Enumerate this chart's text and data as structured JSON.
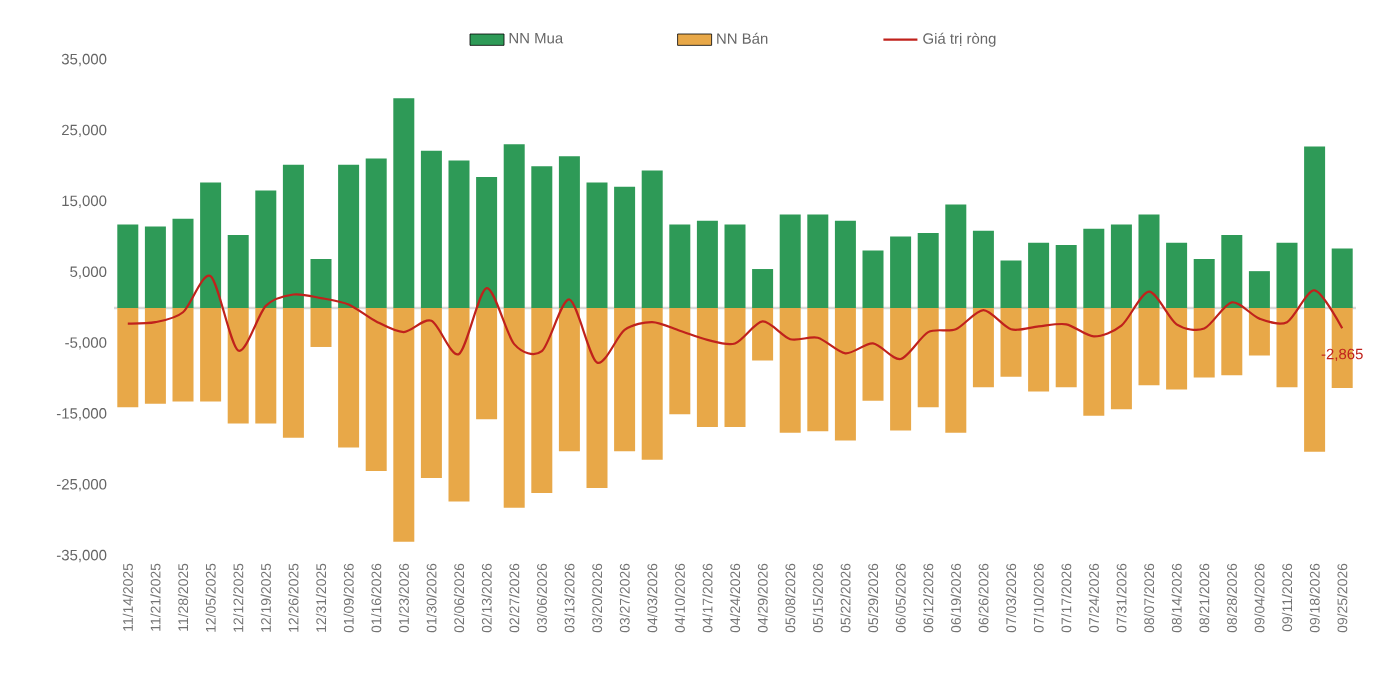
{
  "chart_data": {
    "type": "bar",
    "categories": [
      "11/14/2025",
      "11/21/2025",
      "11/28/2025",
      "12/05/2025",
      "12/12/2025",
      "12/19/2025",
      "12/26/2025",
      "12/31/2025",
      "01/09/2026",
      "01/16/2026",
      "01/23/2026",
      "01/30/2026",
      "02/06/2026",
      "02/13/2026",
      "02/27/2026",
      "03/06/2026",
      "03/13/2026",
      "03/20/2026",
      "03/27/2026",
      "04/03/2026",
      "04/10/2026",
      "04/17/2026",
      "04/24/2026",
      "04/29/2026",
      "05/08/2026",
      "05/15/2026",
      "05/22/2026",
      "05/29/2026",
      "06/05/2026",
      "06/12/2026",
      "06/19/2026",
      "06/26/2026",
      "07/03/2026",
      "07/10/2026",
      "07/17/2026",
      "07/24/2026",
      "07/31/2026",
      "08/07/2026",
      "08/14/2026",
      "08/21/2026",
      "08/28/2026",
      "09/04/2026",
      "09/11/2026",
      "09/18/2026",
      "09/25/2026"
    ],
    "series": [
      {
        "name": "NN Mua",
        "color": "#2e9a57",
        "values": [
          11800,
          11500,
          12600,
          17700,
          10300,
          16600,
          20200,
          6900,
          20200,
          21100,
          29600,
          22200,
          20800,
          18500,
          23100,
          20000,
          21400,
          17700,
          17100,
          19400,
          11800,
          12300,
          11800,
          5500,
          13200,
          13200,
          12300,
          8100,
          10100,
          10600,
          14600,
          10900,
          6700,
          9200,
          8900,
          11200,
          11800,
          13200,
          9200,
          6900,
          10300,
          5200,
          9200,
          22800,
          8400
        ]
      },
      {
        "name": "NN Bán",
        "color": "#e8a848",
        "values": [
          -14000,
          -13500,
          -13200,
          -13200,
          -16300,
          -16300,
          -18300,
          -5500,
          -19700,
          -23000,
          -33000,
          -24000,
          -27300,
          -15700,
          -28200,
          -26100,
          -20200,
          -25400,
          -20200,
          -21400,
          -15000,
          -16800,
          -16800,
          -7400,
          -17600,
          -17400,
          -18700,
          -13100,
          -17300,
          -14000,
          -17600,
          -11200,
          -9700,
          -11800,
          -11200,
          -15200,
          -14300,
          -10900,
          -11500,
          -9800,
          -9500,
          -6700,
          -11200,
          -20300,
          -11300
        ]
      },
      {
        "name": "Giá trị ròng",
        "type": "line",
        "color": "#c0221c",
        "values": [
          -2200,
          -2000,
          -600,
          4500,
          -6000,
          300,
          1900,
          1400,
          500,
          -1900,
          -3400,
          -1800,
          -6500,
          2800,
          -5100,
          -6100,
          1200,
          -7700,
          -3100,
          -2000,
          -3200,
          -4500,
          -5000,
          -1900,
          -4400,
          -4200,
          -6400,
          -5000,
          -7200,
          -3400,
          -3000,
          -300,
          -3000,
          -2600,
          -2300,
          -4000,
          -2500,
          2300,
          -2300,
          -2900,
          800,
          -1500,
          -2000,
          2500,
          -2865
        ],
        "value_labels": [
          null,
          null,
          null,
          null,
          null,
          null,
          null,
          null,
          null,
          null,
          null,
          null,
          null,
          null,
          null,
          null,
          null,
          null,
          null,
          null,
          null,
          null,
          null,
          null,
          null,
          null,
          null,
          null,
          null,
          null,
          null,
          null,
          null,
          null,
          null,
          null,
          null,
          null,
          null,
          null,
          null,
          null,
          null,
          null,
          "-2,865"
        ]
      }
    ],
    "ylim": [
      -35000,
      35000
    ],
    "yticks": [
      {
        "value": 35000,
        "label": "35,000"
      },
      {
        "value": 25000,
        "label": "25,000"
      },
      {
        "value": 15000,
        "label": "15,000"
      },
      {
        "value": 5000,
        "label": "5,000"
      },
      {
        "value": -5000,
        "label": "-5,000"
      },
      {
        "value": -15000,
        "label": "-15,000"
      },
      {
        "value": -25000,
        "label": "-25,000"
      },
      {
        "value": -35000,
        "label": "-35,000"
      }
    ],
    "legend": "top",
    "stacked": true
  }
}
